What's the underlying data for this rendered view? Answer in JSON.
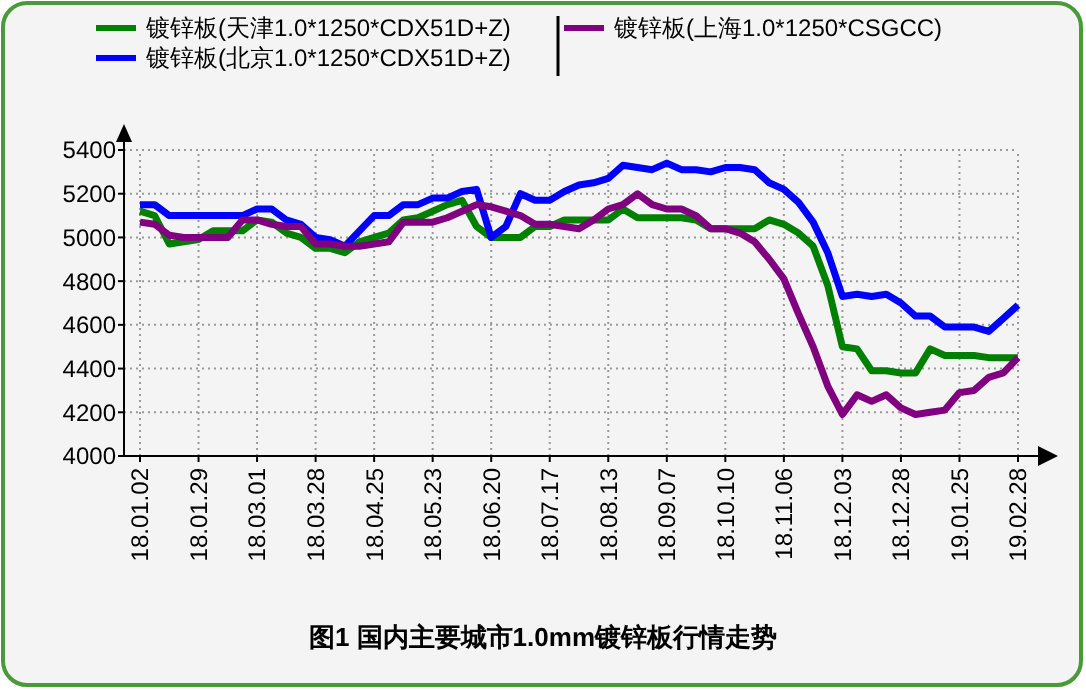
{
  "chart_data": {
    "type": "line",
    "title": "图1 国内主要城市1.0mm镀锌板行情走势",
    "categories": [
      "18.01.02",
      null,
      null,
      null,
      "18.01.29",
      null,
      null,
      null,
      "18.03.01",
      null,
      null,
      null,
      "18.03.28",
      null,
      null,
      null,
      "18.04.25",
      null,
      null,
      null,
      "18.05.23",
      null,
      null,
      null,
      "18.06.20",
      null,
      null,
      null,
      "18.07.17",
      null,
      null,
      null,
      "18.08.13",
      null,
      null,
      null,
      "18.09.07",
      null,
      null,
      null,
      "18.10.10",
      null,
      null,
      null,
      "18.11.06",
      null,
      null,
      null,
      "18.12.03",
      null,
      null,
      null,
      "18.12.28",
      null,
      null,
      null,
      "19.01.25",
      null,
      null,
      null,
      "19.02.28"
    ],
    "series": [
      {
        "name": "镀锌板(天津1.0*1250*CDX51D+Z)",
        "color": "#008000",
        "values": [
          5120,
          5100,
          4970,
          4980,
          4990,
          5030,
          5030,
          5030,
          5080,
          5070,
          5020,
          5000,
          4950,
          4950,
          4930,
          4980,
          5000,
          5020,
          5080,
          5090,
          5120,
          5150,
          5170,
          5050,
          5000,
          5000,
          5000,
          5050,
          5050,
          5080,
          5080,
          5080,
          5080,
          5130,
          5090,
          5090,
          5090,
          5090,
          5080,
          5040,
          5040,
          5040,
          5040,
          5080,
          5060,
          5020,
          4960,
          4780,
          4500,
          4490,
          4390,
          4390,
          4380,
          4380,
          4490,
          4460,
          4460,
          4460,
          4450,
          4450,
          4450
        ]
      },
      {
        "name": "镀锌板(北京1.0*1250*CDX51D+Z)",
        "color": "#0000ff",
        "values": [
          5150,
          5150,
          5100,
          5100,
          5100,
          5100,
          5100,
          5100,
          5130,
          5130,
          5080,
          5060,
          5000,
          4990,
          4960,
          5030,
          5100,
          5100,
          5150,
          5150,
          5180,
          5180,
          5210,
          5220,
          5000,
          5050,
          5200,
          5170,
          5170,
          5210,
          5240,
          5250,
          5270,
          5330,
          5320,
          5310,
          5340,
          5310,
          5310,
          5300,
          5320,
          5320,
          5310,
          5250,
          5220,
          5160,
          5070,
          4930,
          4730,
          4740,
          4730,
          4740,
          4700,
          4640,
          4640,
          4590,
          4590,
          4590,
          4570,
          4630,
          4690
        ]
      },
      {
        "name": "镀锌板(上海1.0*1250*CSGCC)",
        "color": "#800080",
        "values": [
          5070,
          5060,
          5010,
          5000,
          5000,
          5000,
          5000,
          5080,
          5080,
          5060,
          5050,
          5050,
          4970,
          4970,
          4960,
          4960,
          4970,
          4980,
          5070,
          5070,
          5070,
          5090,
          5120,
          5150,
          5140,
          5120,
          5100,
          5060,
          5060,
          5050,
          5040,
          5080,
          5130,
          5150,
          5200,
          5150,
          5130,
          5130,
          5100,
          5040,
          5040,
          5020,
          4980,
          4900,
          4810,
          4650,
          4500,
          4320,
          4190,
          4280,
          4250,
          4280,
          4220,
          4190,
          4200,
          4210,
          4290,
          4300,
          4360,
          4380,
          4450
        ]
      }
    ],
    "ylim": [
      4000,
      5400
    ],
    "yticks": [
      4000,
      4200,
      4400,
      4600,
      4800,
      5000,
      5200,
      5400
    ],
    "grid": true,
    "legend": "top",
    "marker": "none",
    "line_style": "solid"
  }
}
